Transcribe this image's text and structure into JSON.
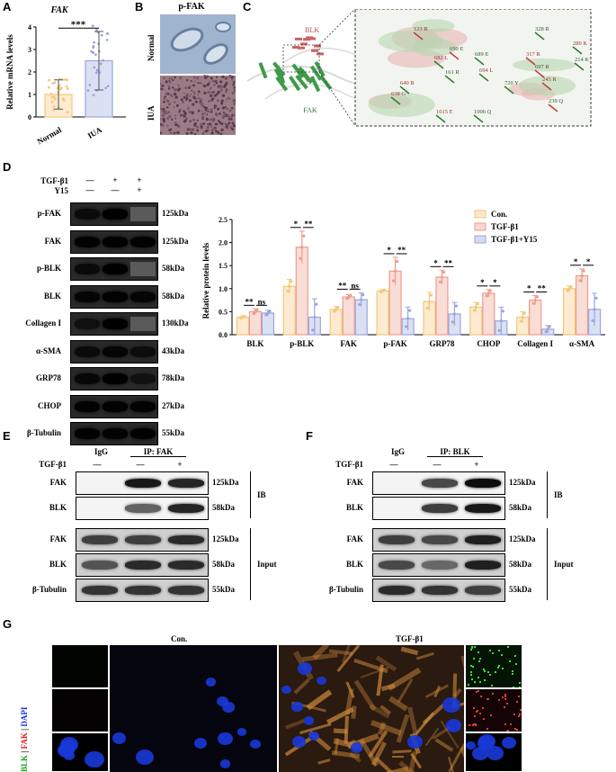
{
  "panels": {
    "A": "A",
    "B": "B",
    "C": "C",
    "D": "D",
    "E": "E",
    "F": "F",
    "G": "G"
  },
  "panel_a": {
    "gene": "FAK",
    "ylabel": "Relative mRNA levels",
    "significance": "***",
    "chart_data": {
      "type": "bar",
      "categories": [
        "Normal",
        "IUA"
      ],
      "values": [
        1.0,
        2.5
      ],
      "errors": [
        0.65,
        1.3
      ],
      "ylim": [
        0,
        4
      ],
      "yticks": [
        "0",
        "1",
        "2",
        "3",
        "4"
      ],
      "colors": [
        "#f5c77a",
        "#9aa6dd"
      ]
    }
  },
  "panel_b": {
    "title": "p-FAK",
    "rows": [
      "Normal",
      "IUA"
    ]
  },
  "panel_c": {
    "protein_labels": [
      "BLK",
      "FAK"
    ],
    "residues": [
      "123 R",
      "328 R",
      "289 K",
      "690 E",
      "682 L",
      "689 E",
      "317 R",
      "214 K",
      "694 L",
      "697 R",
      "640 R",
      "161 R",
      "245 R",
      "720 Y",
      "638 G",
      "239 Q",
      "1015 E",
      "1006 Q"
    ]
  },
  "panel_d": {
    "treatments": [
      {
        "name": "TGF-β1",
        "marks": [
          "—",
          "+",
          "+"
        ]
      },
      {
        "name": "Y15",
        "marks": [
          "—",
          "—",
          "+"
        ]
      }
    ],
    "blots": [
      {
        "name": "p-FAK",
        "kda": "125kDa"
      },
      {
        "name": "FAK",
        "kda": "125kDa"
      },
      {
        "name": "p-BLK",
        "kda": "58kDa"
      },
      {
        "name": "BLK",
        "kda": "58kDa"
      },
      {
        "name": "Collagen I",
        "kda": "130kDa"
      },
      {
        "name": "α-SMA",
        "kda": "43kDa"
      },
      {
        "name": "GRP78",
        "kda": "78kDa"
      },
      {
        "name": "CHOP",
        "kda": "27kDa"
      },
      {
        "name": "β-Tubulin",
        "kda": "55kDa"
      }
    ],
    "chart_data": {
      "type": "bar",
      "ylabel": "Relative protein levels",
      "ylim": [
        0,
        2.5
      ],
      "yticks": [
        "0.0",
        "0.5",
        "1.0",
        "1.5",
        "2.0",
        "2.5"
      ],
      "categories": [
        "BLK",
        "p-BLK",
        "FAK",
        "p-FAK",
        "GRP78",
        "CHOP",
        "Collagen I",
        "α-SMA"
      ],
      "series": [
        {
          "name": "Con.",
          "color": "#f5c77a",
          "values": [
            0.38,
            1.05,
            0.55,
            0.95,
            0.72,
            0.6,
            0.38,
            1.0
          ],
          "errors": [
            0.03,
            0.15,
            0.06,
            0.03,
            0.2,
            0.1,
            0.12,
            0.06
          ]
        },
        {
          "name": "TGF-β1",
          "color": "#ee9d8c",
          "values": [
            0.5,
            1.9,
            0.82,
            1.38,
            1.25,
            0.9,
            0.75,
            1.28
          ],
          "errors": [
            0.06,
            0.35,
            0.05,
            0.3,
            0.15,
            0.08,
            0.1,
            0.15
          ]
        },
        {
          "name": "TGF-β1+Y15",
          "color": "#9aa6dd",
          "values": [
            0.47,
            0.38,
            0.76,
            0.35,
            0.45,
            0.3,
            0.12,
            0.55
          ],
          "errors": [
            0.06,
            0.4,
            0.15,
            0.25,
            0.25,
            0.3,
            0.08,
            0.35
          ]
        }
      ],
      "significance": [
        [
          "**",
          "ns"
        ],
        [
          "*",
          "**"
        ],
        [
          "**",
          "ns"
        ],
        [
          "*",
          "**"
        ],
        [
          "*",
          "**"
        ],
        [
          "*",
          "*"
        ],
        [
          "*",
          "**"
        ],
        [
          "*",
          "*"
        ]
      ],
      "legend": "top-right"
    }
  },
  "panel_e": {
    "col_headers": {
      "igg": "IgG",
      "ip": "IP: FAK"
    },
    "treatment": {
      "name": "TGF-β1",
      "marks": [
        "—",
        "—",
        "+"
      ]
    },
    "ib_rows": [
      {
        "name": "FAK",
        "kda": "125kDa"
      },
      {
        "name": "BLK",
        "kda": "58kDa"
      }
    ],
    "input_rows": [
      {
        "name": "FAK",
        "kda": "125kDa"
      },
      {
        "name": "BLK",
        "kda": "58kDa"
      },
      {
        "name": "β-Tubulin",
        "kda": "55kDa"
      }
    ],
    "ib_label": "IB",
    "input_label": "Input"
  },
  "panel_f": {
    "col_headers": {
      "igg": "IgG",
      "ip": "IP: BLK"
    },
    "treatment": {
      "name": "TGF-β1",
      "marks": [
        "—",
        "—",
        "+"
      ]
    },
    "ib_rows": [
      {
        "name": "FAK",
        "kda": "125kDa"
      },
      {
        "name": "BLK",
        "kda": "58kDa"
      }
    ],
    "input_rows": [
      {
        "name": "FAK",
        "kda": "125kDa"
      },
      {
        "name": "BLK",
        "kda": "58kDa"
      },
      {
        "name": "β-Tubulin",
        "kda": "55kDa"
      }
    ],
    "ib_label": "IB",
    "input_label": "Input"
  },
  "panel_g": {
    "conditions": [
      "Con.",
      "TGF-β1"
    ],
    "stain": {
      "blk": "BLK",
      "fak": "FAK",
      "dapi": "DAPI",
      "sep": " | "
    }
  }
}
